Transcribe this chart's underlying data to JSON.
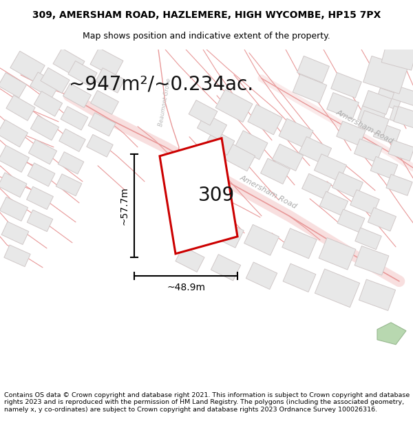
{
  "title_line1": "309, AMERSHAM ROAD, HAZLEMERE, HIGH WYCOMBE, HP15 7PX",
  "title_line2": "Map shows position and indicative extent of the property.",
  "area_text": "~947m²/~0.234ac.",
  "dim_width": "~48.9m",
  "dim_height": "~57.7m",
  "label_309": "309",
  "footer_text": "Contains OS data © Crown copyright and database right 2021. This information is subject to Crown copyright and database rights 2023 and is reproduced with the permission of HM Land Registry. The polygons (including the associated geometry, namely x, y co-ordinates) are subject to Crown copyright and database rights 2023 Ordnance Survey 100026316.",
  "bg_color": "#ffffff",
  "map_bg": "#ffffff",
  "plot_outline_color": "#cc0000",
  "road_line_color": "#e89898",
  "building_fill": "#e8e8e8",
  "building_edge": "#d0c8c8",
  "dim_line_color": "#000000",
  "title_fontsize": 10,
  "subtitle_fontsize": 9,
  "area_fontsize": 20,
  "label_fontsize": 20,
  "dim_fontsize": 10,
  "footer_fontsize": 6.8,
  "road_label_color": "#aaaaaa",
  "amersham_label_color": "#aaaaaa"
}
